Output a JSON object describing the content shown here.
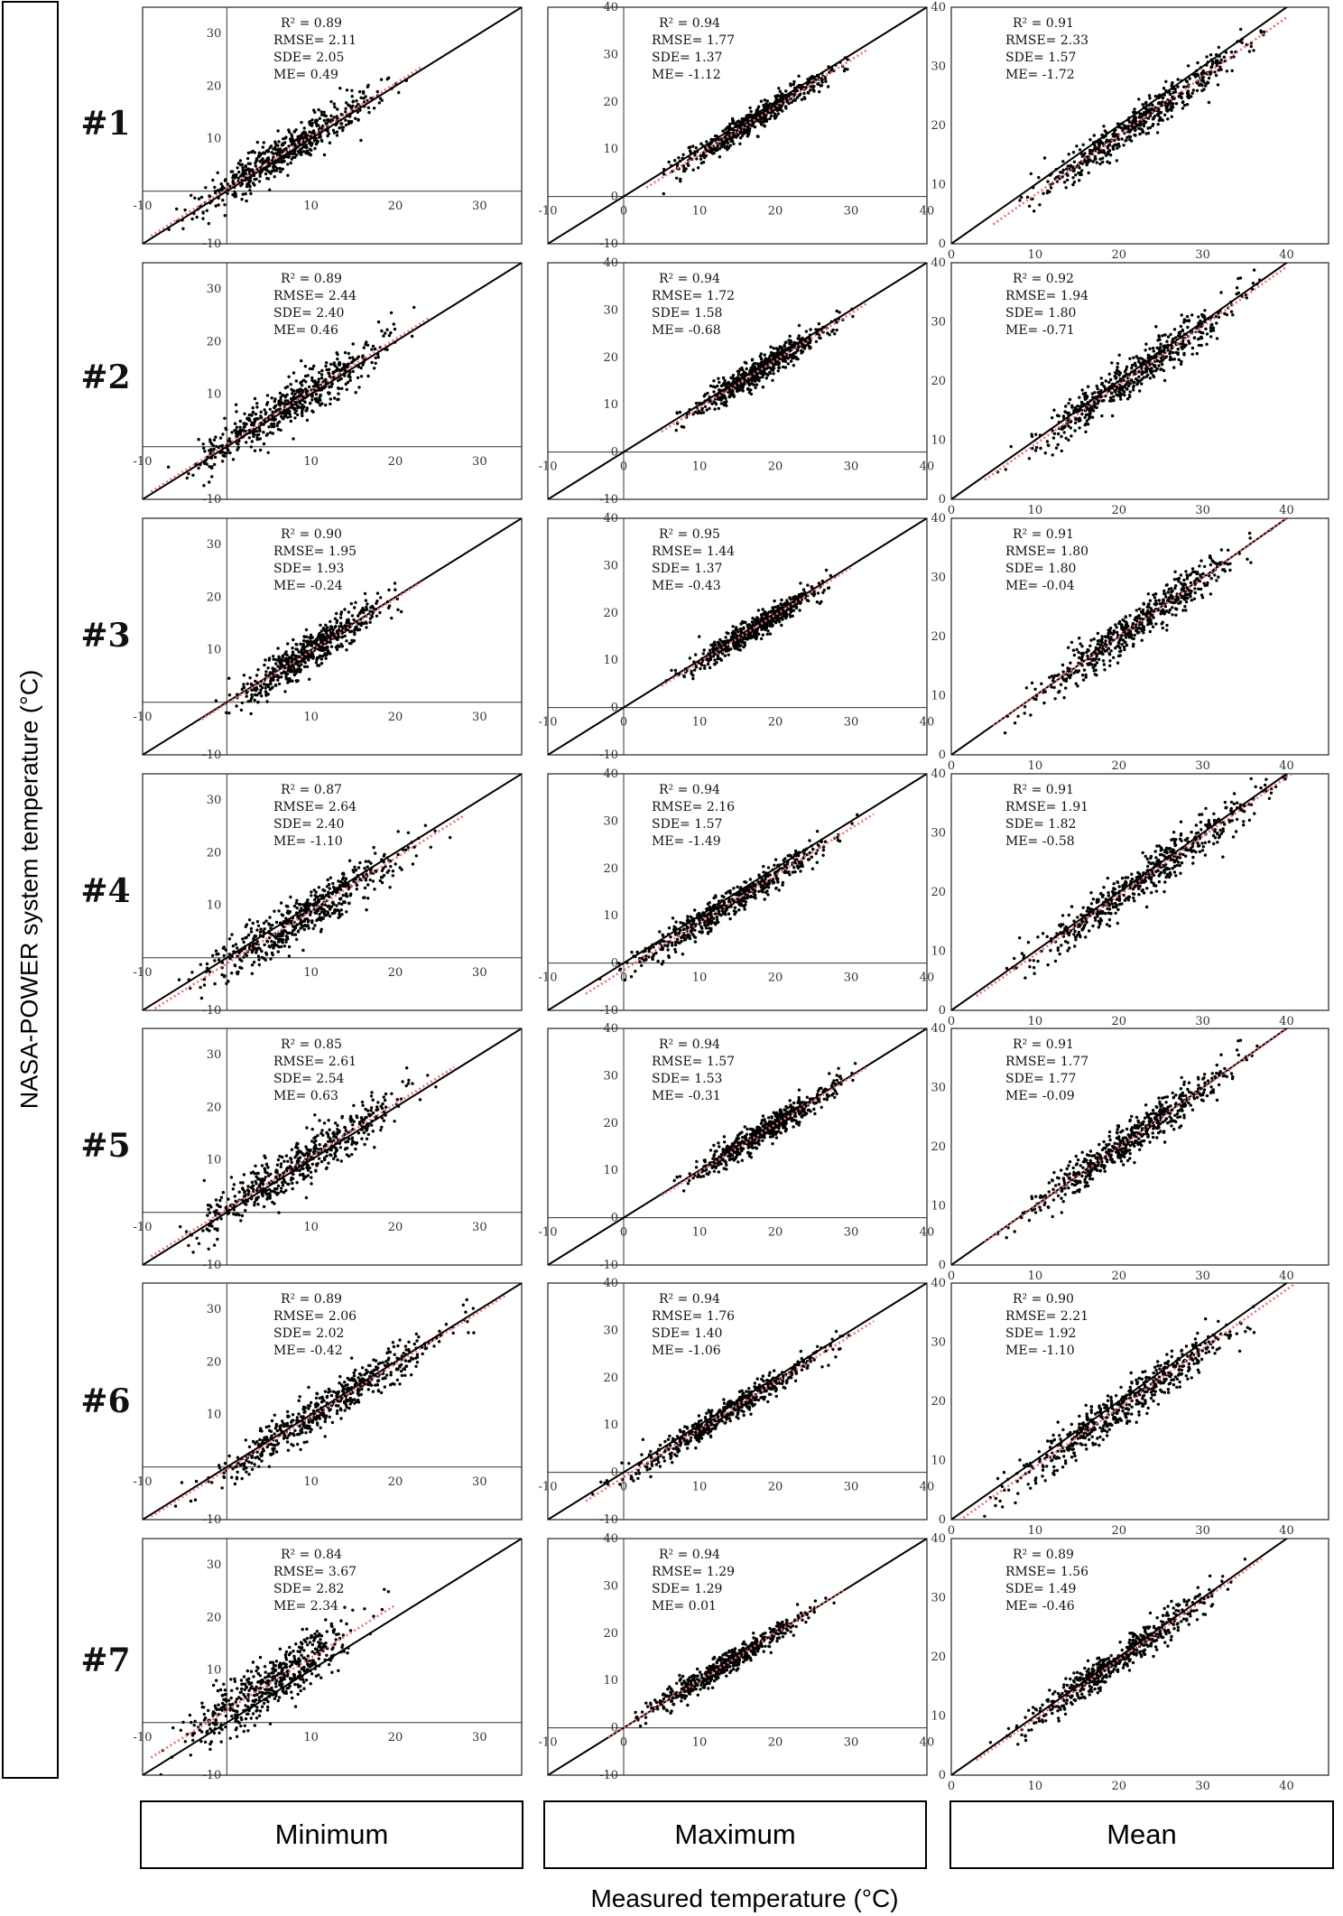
{
  "ylabel": "NASA-POWER system temperature (°C)",
  "xlabel": "Measured temperature (°C)",
  "columns": [
    "Minimum",
    "Maximum",
    "Mean"
  ],
  "rows": [
    "#1",
    "#2",
    "#3",
    "#4",
    "#5",
    "#6",
    "#7"
  ],
  "colors": {
    "points": "#000000",
    "identity_line": "#000000",
    "fit_line": "#ec6f6f",
    "frame": "#000000"
  },
  "chart_data": {
    "type": "scatter",
    "description_axes": {
      "Minimum": {
        "xlim": [
          -10,
          35
        ],
        "ylim": [
          -10,
          35
        ],
        "xticks": [
          -10,
          10,
          20,
          30
        ],
        "yticks": [
          -10,
          10,
          20,
          30
        ]
      },
      "Maximum": {
        "xlim": [
          -10,
          40
        ],
        "ylim": [
          -10,
          40
        ],
        "xticks": [
          -10,
          0,
          10,
          20,
          30,
          40
        ],
        "yticks": [
          -10,
          0,
          10,
          20,
          30,
          40
        ]
      },
      "Mean": {
        "xlim": [
          0,
          45
        ],
        "ylim": [
          0,
          40
        ],
        "xticks": [
          0,
          10,
          20,
          30,
          40
        ],
        "yticks": [
          0,
          10,
          20,
          30,
          40
        ]
      }
    },
    "panels": [
      {
        "row": "#1",
        "col": "Minimum",
        "r2": "0.89",
        "rmse": "2.11",
        "sde": "2.05",
        "me": "0.49",
        "x_range": [
          -9,
          23
        ]
      },
      {
        "row": "#1",
        "col": "Maximum",
        "r2": "0.94",
        "rmse": "1.77",
        "sde": "1.37",
        "me": "-1.12",
        "x_range": [
          3,
          32
        ]
      },
      {
        "row": "#1",
        "col": "Mean",
        "r2": "0.91",
        "rmse": "2.33",
        "sde": "1.57",
        "me": "-1.72",
        "x_range": [
          5,
          40
        ]
      },
      {
        "row": "#2",
        "col": "Minimum",
        "r2": "0.89",
        "rmse": "2.44",
        "sde": "2.40",
        "me": "0.46",
        "x_range": [
          -9,
          24
        ]
      },
      {
        "row": "#2",
        "col": "Maximum",
        "r2": "0.94",
        "rmse": "1.72",
        "sde": "1.58",
        "me": "-0.68",
        "x_range": [
          5,
          32
        ]
      },
      {
        "row": "#2",
        "col": "Mean",
        "r2": "0.92",
        "rmse": "1.94",
        "sde": "1.80",
        "me": "-0.71",
        "x_range": [
          4,
          40
        ]
      },
      {
        "row": "#3",
        "col": "Minimum",
        "r2": "0.90",
        "rmse": "1.95",
        "sde": "1.93",
        "me": "-0.24",
        "x_range": [
          -3,
          23
        ]
      },
      {
        "row": "#3",
        "col": "Maximum",
        "r2": "0.95",
        "rmse": "1.44",
        "sde": "1.37",
        "me": "-0.43",
        "x_range": [
          5,
          30
        ]
      },
      {
        "row": "#3",
        "col": "Mean",
        "r2": "0.91",
        "rmse": "1.80",
        "sde": "1.80",
        "me": "-0.04",
        "x_range": [
          5,
          40
        ]
      },
      {
        "row": "#4",
        "col": "Minimum",
        "r2": "0.87",
        "rmse": "2.64",
        "sde": "2.40",
        "me": "-1.10",
        "x_range": [
          -9,
          28
        ]
      },
      {
        "row": "#4",
        "col": "Maximum",
        "r2": "0.94",
        "rmse": "2.16",
        "sde": "1.57",
        "me": "-1.49",
        "x_range": [
          -5,
          33
        ]
      },
      {
        "row": "#4",
        "col": "Mean",
        "r2": "0.91",
        "rmse": "1.91",
        "sde": "1.82",
        "me": "-0.58",
        "x_range": [
          3,
          43
        ]
      },
      {
        "row": "#5",
        "col": "Minimum",
        "r2": "0.85",
        "rmse": "2.61",
        "sde": "2.54",
        "me": "0.63",
        "x_range": [
          -9,
          27
        ]
      },
      {
        "row": "#5",
        "col": "Maximum",
        "r2": "0.94",
        "rmse": "1.57",
        "sde": "1.53",
        "me": "-0.31",
        "x_range": [
          5,
          32
        ]
      },
      {
        "row": "#5",
        "col": "Mean",
        "r2": "0.91",
        "rmse": "1.77",
        "sde": "1.77",
        "me": "-0.09",
        "x_range": [
          4,
          40
        ]
      },
      {
        "row": "#6",
        "col": "Minimum",
        "r2": "0.89",
        "rmse": "2.06",
        "sde": "2.02",
        "me": "-0.42",
        "x_range": [
          -9,
          33
        ]
      },
      {
        "row": "#6",
        "col": "Maximum",
        "r2": "0.94",
        "rmse": "1.76",
        "sde": "1.40",
        "me": "-1.06",
        "x_range": [
          -5,
          33
        ]
      },
      {
        "row": "#6",
        "col": "Mean",
        "r2": "0.90",
        "rmse": "2.21",
        "sde": "1.92",
        "me": "-1.10",
        "x_range": [
          1,
          41
        ]
      },
      {
        "row": "#7",
        "col": "Minimum",
        "r2": "0.84",
        "rmse": "3.67",
        "sde": "2.82",
        "me": "2.34",
        "x_range": [
          -9,
          20
        ]
      },
      {
        "row": "#7",
        "col": "Maximum",
        "r2": "0.94",
        "rmse": "1.29",
        "sde": "1.29",
        "me": "0.01",
        "x_range": [
          -2,
          29
        ]
      },
      {
        "row": "#7",
        "col": "Mean",
        "r2": "0.89",
        "rmse": "1.56",
        "sde": "1.49",
        "me": "-0.46",
        "x_range": [
          3,
          37
        ]
      }
    ]
  }
}
